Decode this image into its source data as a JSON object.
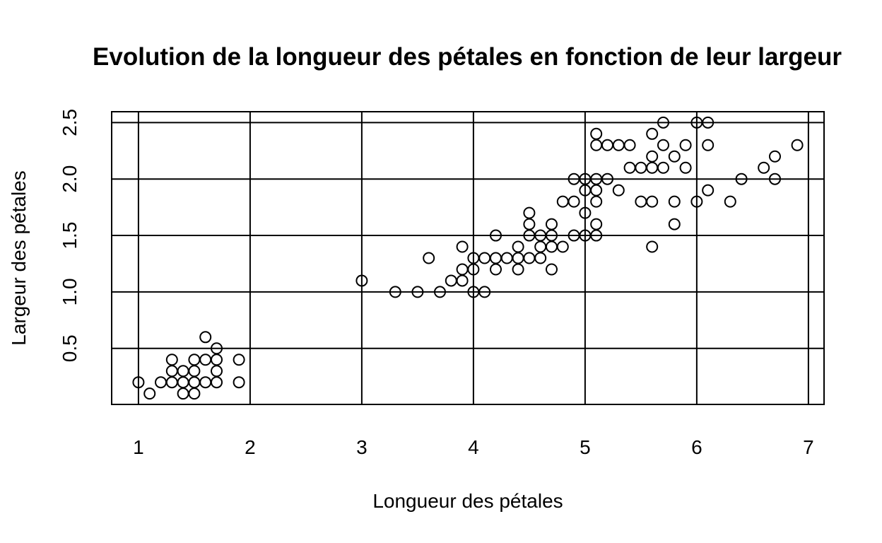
{
  "chart_data": {
    "type": "scatter",
    "title": "Evolution de la longueur des pétales en fonction de leur largeur",
    "xlabel": "Longueur des pétales",
    "ylabel": "Largeur des pétales",
    "xlim": [
      0.76,
      7.14
    ],
    "ylim": [
      0.004,
      2.596
    ],
    "xticks": [
      "1",
      "2",
      "3",
      "4",
      "5",
      "6",
      "7"
    ],
    "yticks": [
      "0.5",
      "1.0",
      "1.5",
      "2.0",
      "2.5"
    ],
    "xgrid": [
      1,
      2,
      3,
      4,
      5,
      6,
      7
    ],
    "ygrid": [
      0.5,
      1.0,
      1.5,
      2.0,
      2.5
    ],
    "grid": true,
    "marker": "open-circle",
    "points": [
      [
        1.0,
        0.2
      ],
      [
        1.1,
        0.1
      ],
      [
        1.2,
        0.2
      ],
      [
        1.3,
        0.2
      ],
      [
        1.3,
        0.3
      ],
      [
        1.3,
        0.4
      ],
      [
        1.4,
        0.1
      ],
      [
        1.4,
        0.2
      ],
      [
        1.4,
        0.3
      ],
      [
        1.5,
        0.1
      ],
      [
        1.5,
        0.2
      ],
      [
        1.5,
        0.3
      ],
      [
        1.5,
        0.4
      ],
      [
        1.6,
        0.2
      ],
      [
        1.6,
        0.4
      ],
      [
        1.6,
        0.6
      ],
      [
        1.7,
        0.2
      ],
      [
        1.7,
        0.3
      ],
      [
        1.7,
        0.4
      ],
      [
        1.7,
        0.5
      ],
      [
        1.9,
        0.2
      ],
      [
        1.9,
        0.4
      ],
      [
        3.0,
        1.1
      ],
      [
        3.3,
        1.0
      ],
      [
        3.5,
        1.0
      ],
      [
        3.6,
        1.3
      ],
      [
        3.7,
        1.0
      ],
      [
        3.8,
        1.1
      ],
      [
        3.9,
        1.1
      ],
      [
        3.9,
        1.2
      ],
      [
        3.9,
        1.4
      ],
      [
        4.0,
        1.0
      ],
      [
        4.0,
        1.2
      ],
      [
        4.0,
        1.3
      ],
      [
        4.1,
        1.0
      ],
      [
        4.1,
        1.3
      ],
      [
        4.2,
        1.2
      ],
      [
        4.2,
        1.3
      ],
      [
        4.2,
        1.5
      ],
      [
        4.3,
        1.3
      ],
      [
        4.4,
        1.2
      ],
      [
        4.4,
        1.3
      ],
      [
        4.4,
        1.4
      ],
      [
        4.5,
        1.3
      ],
      [
        4.5,
        1.5
      ],
      [
        4.5,
        1.6
      ],
      [
        4.5,
        1.7
      ],
      [
        4.6,
        1.3
      ],
      [
        4.6,
        1.4
      ],
      [
        4.6,
        1.5
      ],
      [
        4.7,
        1.2
      ],
      [
        4.7,
        1.4
      ],
      [
        4.7,
        1.5
      ],
      [
        4.7,
        1.6
      ],
      [
        4.8,
        1.4
      ],
      [
        4.8,
        1.8
      ],
      [
        4.9,
        1.5
      ],
      [
        4.9,
        1.8
      ],
      [
        4.9,
        2.0
      ],
      [
        5.0,
        1.5
      ],
      [
        5.0,
        1.7
      ],
      [
        5.0,
        1.9
      ],
      [
        5.0,
        2.0
      ],
      [
        5.1,
        1.5
      ],
      [
        5.1,
        1.6
      ],
      [
        5.1,
        1.8
      ],
      [
        5.1,
        1.9
      ],
      [
        5.1,
        2.0
      ],
      [
        5.1,
        2.3
      ],
      [
        5.1,
        2.4
      ],
      [
        5.2,
        2.0
      ],
      [
        5.2,
        2.3
      ],
      [
        5.3,
        1.9
      ],
      [
        5.3,
        2.3
      ],
      [
        5.4,
        2.1
      ],
      [
        5.4,
        2.3
      ],
      [
        5.5,
        1.8
      ],
      [
        5.5,
        2.1
      ],
      [
        5.6,
        1.4
      ],
      [
        5.6,
        1.8
      ],
      [
        5.6,
        2.1
      ],
      [
        5.6,
        2.2
      ],
      [
        5.6,
        2.4
      ],
      [
        5.7,
        2.1
      ],
      [
        5.7,
        2.3
      ],
      [
        5.7,
        2.5
      ],
      [
        5.8,
        1.6
      ],
      [
        5.8,
        1.8
      ],
      [
        5.8,
        2.2
      ],
      [
        5.9,
        2.1
      ],
      [
        5.9,
        2.3
      ],
      [
        6.0,
        1.8
      ],
      [
        6.0,
        2.5
      ],
      [
        6.1,
        1.9
      ],
      [
        6.1,
        2.3
      ],
      [
        6.1,
        2.5
      ],
      [
        6.3,
        1.8
      ],
      [
        6.4,
        2.0
      ],
      [
        6.6,
        2.1
      ],
      [
        6.7,
        2.0
      ],
      [
        6.7,
        2.2
      ],
      [
        6.9,
        2.3
      ]
    ]
  }
}
